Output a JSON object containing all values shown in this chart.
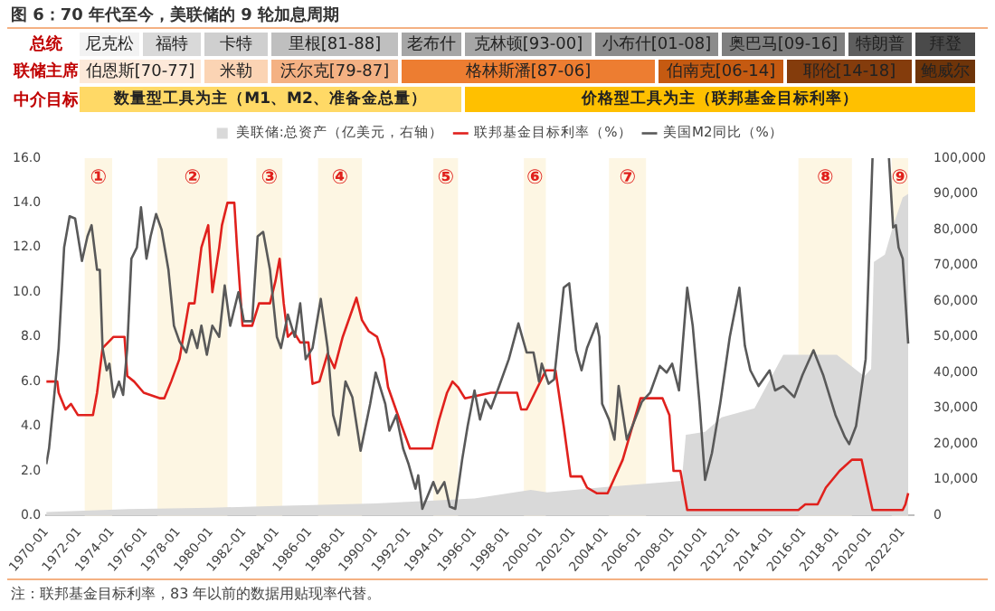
{
  "chart_data": {
    "type": "line",
    "title": "图 6：70 年代至今，美联储的 9 轮加息周期",
    "annotations": [
      "总统",
      "尼克松",
      "福特",
      "卡特",
      "里根[81-88]",
      "老布什",
      "克林顿[93-00]",
      "小布什[01-08]",
      "奥巴马[09-16]",
      "特朗普",
      "拜登",
      "联储主席",
      "伯恩斯[70-77]",
      "米勒",
      "沃尔克[79-87]",
      "格林斯潘[87-06]",
      "伯南克[06-14]",
      "耶伦[14-18]",
      "鲍威尔",
      "中介目标",
      "数量型工具为主（M1、M2、准备金总量）",
      "价格型工具为主（联邦基金目标利率）",
      "注：联邦基金目标利率，83 年以前的数据用贴现率代替。"
    ],
    "series": [
      {
        "name": "美联储:总资产（亿美元，右轴）",
        "type": "area",
        "axis": "y2",
        "color": "#d9d9d9",
        "x": [
          "1970-01",
          "1975-01",
          "1980-01",
          "1984-01",
          "1990-01",
          "1996-01",
          "1999-06",
          "2000-06",
          "2004-01",
          "2008-08",
          "2008-11",
          "2010-01",
          "2011-01",
          "2013-01",
          "2014-10",
          "2018-01",
          "2019-09",
          "2020-02",
          "2020-04",
          "2020-12",
          "2021-06",
          "2022-01",
          "2022-05"
        ],
        "values": [
          1000,
          1800,
          2200,
          2700,
          3400,
          4800,
          7200,
          6500,
          8000,
          9700,
          22600,
          23400,
          27500,
          30000,
          45000,
          45000,
          39000,
          41000,
          71000,
          73000,
          81000,
          89000,
          90000
        ]
      },
      {
        "name": "联邦基金目标利率（%）",
        "color": "#e0211d",
        "x": [
          "1970-01",
          "1970-09",
          "1970-10",
          "1971-03",
          "1971-07",
          "1971-12",
          "1972-11",
          "1973-02",
          "1973-06",
          "1974-02",
          "1974-10",
          "1974-12",
          "1975-05",
          "1975-12",
          "1976-12",
          "1977-03",
          "1977-08",
          "1978-02",
          "1978-09",
          "1979-01",
          "1979-06",
          "1979-11",
          "1980-02",
          "1980-07",
          "1980-09",
          "1981-01",
          "1981-06",
          "1981-08",
          "1981-12",
          "1982-07",
          "1982-12",
          "1983-08",
          "1983-12",
          "1984-03",
          "1984-06",
          "1984-09",
          "1985-01",
          "1985-06",
          "1985-12",
          "1986-03",
          "1986-08",
          "1987-02",
          "1987-07",
          "1988-01",
          "1988-11",
          "1989-03",
          "1989-08",
          "1990-02",
          "1990-07",
          "1990-10",
          "1991-08",
          "1992-02",
          "1993-06",
          "1993-11",
          "1994-05",
          "1994-09",
          "1995-01",
          "1995-06",
          "1997-01",
          "1998-08",
          "1998-11",
          "1999-03",
          "2000-05",
          "2000-12",
          "2001-06",
          "2001-11",
          "2002-07",
          "2002-11",
          "2003-06",
          "2004-02",
          "2005-01",
          "2006-02",
          "2007-06",
          "2007-11",
          "2008-02",
          "2008-07",
          "2008-12",
          "2015-09",
          "2016-02",
          "2016-11",
          "2017-05",
          "2018-03",
          "2018-12",
          "2019-07",
          "2020-03",
          "2022-01",
          "2022-03",
          "2022-05"
        ],
        "values": [
          6.0,
          6.0,
          5.5,
          4.75,
          5.0,
          4.5,
          4.5,
          5.5,
          7.5,
          8.0,
          8.0,
          6.25,
          6.0,
          5.5,
          5.25,
          5.25,
          6.0,
          7.0,
          9.5,
          9.5,
          12.0,
          13.0,
          10.0,
          12.0,
          13.0,
          14.0,
          14.0,
          12.0,
          8.5,
          8.5,
          9.5,
          9.5,
          10.5,
          11.5,
          9.5,
          8.0,
          8.25,
          7.75,
          7.75,
          5.9,
          6.0,
          7.25,
          6.6,
          8.0,
          9.75,
          8.75,
          8.25,
          8.0,
          7.0,
          5.75,
          4.0,
          3.0,
          3.0,
          4.25,
          5.5,
          6.0,
          5.75,
          5.25,
          5.5,
          5.5,
          4.75,
          4.75,
          6.5,
          6.5,
          4.0,
          1.75,
          1.75,
          1.25,
          1.0,
          1.0,
          2.5,
          5.25,
          5.25,
          4.5,
          2.0,
          2.0,
          0.25,
          0.25,
          0.5,
          0.5,
          1.25,
          2.0,
          2.5,
          2.5,
          0.25,
          0.25,
          0.5,
          1.0
        ]
      },
      {
        "name": "美国M2同比（%）",
        "color": "#595959",
        "x": [
          "1970-01",
          "1970-03",
          "1970-07",
          "1970-10",
          "1971-02",
          "1971-06",
          "1971-10",
          "1972-03",
          "1972-07",
          "1972-10",
          "1973-02",
          "1973-04",
          "1973-06",
          "1973-09",
          "1973-11",
          "1974-02",
          "1974-06",
          "1974-09",
          "1974-12",
          "1975-03",
          "1975-07",
          "1975-10",
          "1976-02",
          "1976-05",
          "1976-09",
          "1977-01",
          "1977-06",
          "1977-10",
          "1978-02",
          "1978-07",
          "1978-11",
          "1979-03",
          "1979-06",
          "1979-10",
          "1980-02",
          "1980-07",
          "1980-11",
          "1981-03",
          "1981-09",
          "1982-01",
          "1982-07",
          "1982-11",
          "1983-03",
          "1983-08",
          "1984-01",
          "1984-04",
          "1984-09",
          "1985-02",
          "1985-06",
          "1985-10",
          "1986-03",
          "1986-09",
          "1987-02",
          "1987-06",
          "1987-10",
          "1988-03",
          "1988-08",
          "1989-02",
          "1989-09",
          "1990-01",
          "1990-08",
          "1990-11",
          "1991-04",
          "1991-09",
          "1992-01",
          "1992-06",
          "1992-08",
          "1992-11",
          "1993-07",
          "1993-10",
          "1994-03",
          "1994-07",
          "1994-11",
          "1995-04",
          "1995-08",
          "1996-01",
          "1996-05",
          "1996-09",
          "1997-01",
          "1997-07",
          "1998-02",
          "1998-09",
          "1999-03",
          "1999-08",
          "1999-12",
          "2000-02",
          "2000-07",
          "2000-11",
          "2001-06",
          "2001-10",
          "2002-03",
          "2002-07",
          "2002-11",
          "2003-06",
          "2003-08",
          "2003-10",
          "2004-03",
          "2004-07",
          "2004-10",
          "2005-04",
          "2005-08",
          "2006-03",
          "2006-09",
          "2007-04",
          "2007-09",
          "2008-01",
          "2008-06",
          "2008-12",
          "2009-04",
          "2009-09",
          "2010-01",
          "2010-06",
          "2010-12",
          "2011-07",
          "2012-02",
          "2012-06",
          "2012-10",
          "2013-04",
          "2013-12",
          "2014-04",
          "2014-10",
          "2015-06",
          "2015-12",
          "2016-08",
          "2017-03",
          "2017-12",
          "2018-07",
          "2018-10",
          "2019-03",
          "2019-10",
          "2020-03",
          "2020-09",
          "2021-03",
          "2021-06",
          "2021-08",
          "2021-10",
          "2022-01",
          "2022-05"
        ],
        "values": [
          2.3,
          3.0,
          5.5,
          7.5,
          12.0,
          13.4,
          13.3,
          11.4,
          12.5,
          13.0,
          11.0,
          11.0,
          7.5,
          6.5,
          6.8,
          5.3,
          6.0,
          5.4,
          7.5,
          11.5,
          12.0,
          13.8,
          11.5,
          12.5,
          13.5,
          12.8,
          11.0,
          8.5,
          7.8,
          7.3,
          8.3,
          7.5,
          8.5,
          7.2,
          8.5,
          8.0,
          10.3,
          8.5,
          10.0,
          8.7,
          8.7,
          12.5,
          12.7,
          11.0,
          8.0,
          7.5,
          9.0,
          8.0,
          9.5,
          7.0,
          7.5,
          9.7,
          7.5,
          4.5,
          3.6,
          6.0,
          5.3,
          2.9,
          5.0,
          6.4,
          5.0,
          3.8,
          4.5,
          3.0,
          2.3,
          1.2,
          1.8,
          0.3,
          1.5,
          1.0,
          1.5,
          0.4,
          0.3,
          2.5,
          4.0,
          5.6,
          4.3,
          5.2,
          4.8,
          5.8,
          7.0,
          8.6,
          7.3,
          7.3,
          6.0,
          6.8,
          5.9,
          6.1,
          10.2,
          10.4,
          7.4,
          6.5,
          7.5,
          8.6,
          8.0,
          5.0,
          4.3,
          3.4,
          5.8,
          3.4,
          4.0,
          5.1,
          5.5,
          6.7,
          6.4,
          6.8,
          5.6,
          10.2,
          8.5,
          5.0,
          1.6,
          2.8,
          5.0,
          8.0,
          10.2,
          7.6,
          6.5,
          5.8,
          6.5,
          5.6,
          5.8,
          5.3,
          6.3,
          7.4,
          6.3,
          4.5,
          3.5,
          3.2,
          4.0,
          7.0,
          16.0,
          null,
          16.0,
          12.9,
          13.0,
          12.0,
          11.5,
          7.7
        ]
      }
    ],
    "bands": [
      {
        "axis": "x",
        "from": "1972-05",
        "to": "1974-01",
        "label": "①",
        "color": "#fdf6e3"
      },
      {
        "axis": "x",
        "from": "1976-10",
        "to": "1981-01",
        "label": "②",
        "color": "#fdf6e3"
      },
      {
        "axis": "x",
        "from": "1982-10",
        "to": "1984-05",
        "label": "③",
        "color": "#fdf6e3"
      },
      {
        "axis": "x",
        "from": "1986-07",
        "to": "1989-03",
        "label": "④",
        "color": "#fdf6e3"
      },
      {
        "axis": "x",
        "from": "1993-07",
        "to": "1995-01",
        "label": "⑤",
        "color": "#fdf6e3"
      },
      {
        "axis": "x",
        "from": "1999-01",
        "to": "2000-05",
        "label": "⑥",
        "color": "#fdf6e3"
      },
      {
        "axis": "x",
        "from": "2004-03",
        "to": "2006-06",
        "label": "⑦",
        "color": "#fdf6e3"
      },
      {
        "axis": "x",
        "from": "2015-09",
        "to": "2018-12",
        "label": "⑧",
        "color": "#fdf6e3"
      },
      {
        "axis": "x",
        "from": "2021-05",
        "to": "2022-05",
        "label": "⑨",
        "color": "#fdf6e3"
      }
    ],
    "xlim": [
      "1970-01",
      "2022-09"
    ],
    "xticks": [
      "1970-01",
      "1972-01",
      "1974-01",
      "1976-01",
      "1978-01",
      "1980-01",
      "1982-01",
      "1984-01",
      "1986-01",
      "1988-01",
      "1990-01",
      "1992-01",
      "1994-01",
      "1996-01",
      "1998-01",
      "2000-01",
      "2002-01",
      "2004-01",
      "2006-01",
      "2008-01",
      "2010-01",
      "2012-01",
      "2014-01",
      "2016-01",
      "2018-01",
      "2020-01",
      "2022-01"
    ],
    "ylim": [
      0,
      16
    ],
    "yticks": [
      {
        "value": 0,
        "label": "0.0"
      },
      {
        "value": 2,
        "label": "2.0"
      },
      {
        "value": 4,
        "label": "4.0"
      },
      {
        "value": 6,
        "label": "6.0"
      },
      {
        "value": 8,
        "label": "8.0"
      },
      {
        "value": 10,
        "label": "10.0"
      },
      {
        "value": 12,
        "label": "12.0"
      },
      {
        "value": 14,
        "label": "14.0"
      },
      {
        "value": 16,
        "label": "16.0"
      }
    ],
    "y2lim": [
      0,
      100000
    ],
    "y2ticks": [
      {
        "value": 0,
        "label": "0"
      },
      {
        "value": 10000,
        "label": "10,000"
      },
      {
        "value": 20000,
        "label": "20,000"
      },
      {
        "value": 30000,
        "label": "30,000"
      },
      {
        "value": 40000,
        "label": "40,000"
      },
      {
        "value": 50000,
        "label": "50,000"
      },
      {
        "value": 60000,
        "label": "60,000"
      },
      {
        "value": 70000,
        "label": "70,000"
      },
      {
        "value": 80000,
        "label": "80,000"
      },
      {
        "value": 90000,
        "label": "90,000"
      },
      {
        "value": 100000,
        "label": "100,000"
      }
    ],
    "legend": "top",
    "grid": false,
    "marker": "none"
  }
}
